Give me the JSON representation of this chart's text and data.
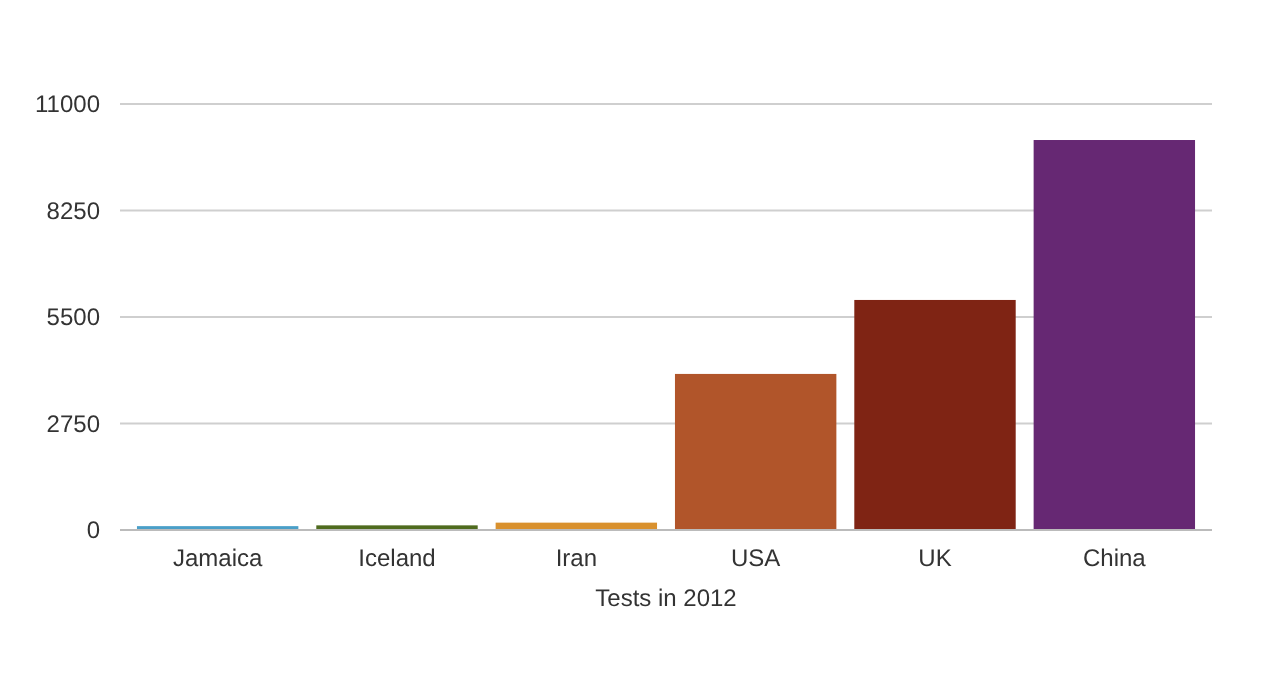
{
  "chart_data": {
    "type": "bar",
    "xlabel": "Tests in 2012",
    "categories": [
      "Jamaica",
      "Iceland",
      "Iran",
      "USA",
      "UK",
      "China"
    ],
    "values": [
      100,
      120,
      190,
      4030,
      5940,
      10070
    ],
    "colors": [
      "#4a9fc8",
      "#4f6b1e",
      "#d9912e",
      "#b1552a",
      "#7f2414",
      "#662873"
    ],
    "ylim": [
      0,
      11000
    ],
    "yticks": [
      0,
      2750,
      5500,
      8250,
      11000
    ],
    "grid": "y"
  }
}
